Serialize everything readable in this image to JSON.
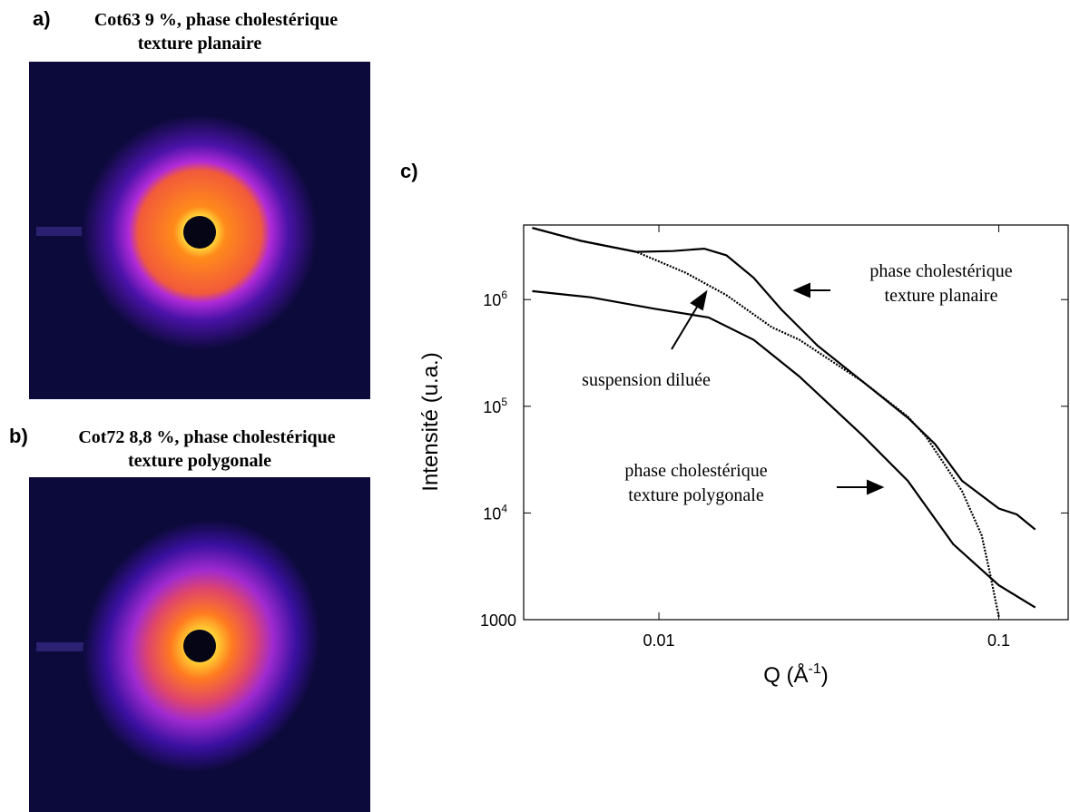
{
  "panel_a": {
    "letter": "a)",
    "title_lines": [
      "Cot63 9 %, phase cholestérique",
      "texture planaire"
    ]
  },
  "panel_b": {
    "letter": "b)",
    "title_lines": [
      "Cot72 8,8 %, phase cholestérique",
      "texture polygonale"
    ]
  },
  "chart_data": {
    "type": "line",
    "panel_label": "c)",
    "x_label": [
      "Q (Å",
      "-1",
      ")"
    ],
    "y_label": "Intensité (u.a.)",
    "x_log": true,
    "y_log": true,
    "xlim": [
      0.004,
      0.16
    ],
    "ylim": [
      1000,
      5000000
    ],
    "xticks": [
      0.01,
      0.1
    ],
    "yticks": [
      1000,
      {
        "value": 10000,
        "label": "10",
        "exp": "4"
      },
      {
        "value": 100000,
        "label": "10",
        "exp": "5"
      },
      {
        "value": 1000000,
        "label": "10",
        "exp": "6"
      }
    ],
    "series": [
      {
        "color": "#000000",
        "x": [
          0.00424,
          0.0059,
          0.00858,
          0.011,
          0.0136,
          0.0158,
          0.019,
          0.0229,
          0.0293,
          0.0398,
          0.054,
          0.065,
          0.078,
          0.1,
          0.113,
          0.128
        ],
        "values": [
          4700000,
          3550000,
          2800000,
          2850000,
          3000000,
          2600000,
          1600000,
          810000,
          370000,
          170000,
          78000,
          44000,
          20000,
          11000,
          9700,
          7000
        ]
      },
      {
        "color": "#000000",
        "x": [
          0.00424,
          0.0059,
          0.00858,
          0.012,
          0.0158,
          0.0215,
          0.0259,
          0.0398,
          0.054,
          0.061,
          0.069,
          0.078,
          0.089,
          0.094,
          0.1
        ],
        "values": [
          4700000,
          3550000,
          2800000,
          1780000,
          1100000,
          550000,
          420000,
          170000,
          80000,
          52000,
          29000,
          16000,
          6200,
          2800,
          1060
        ]
      },
      {
        "color": "#000000",
        "x": [
          0.00424,
          0.0063,
          0.0097,
          0.014,
          0.019,
          0.0259,
          0.0398,
          0.054,
          0.0734,
          0.1,
          0.128
        ],
        "values": [
          1200000,
          1050000,
          820000,
          680000,
          420000,
          190000,
          53000,
          20000,
          5100,
          2100,
          1300
        ]
      }
    ],
    "annotations": [
      {
        "lines": [
          "phase cholestérique",
          "texture planaire"
        ]
      },
      {
        "lines": [
          "suspension diluée"
        ]
      },
      {
        "lines": [
          "phase cholestérique",
          "texture polygonale"
        ]
      }
    ]
  }
}
